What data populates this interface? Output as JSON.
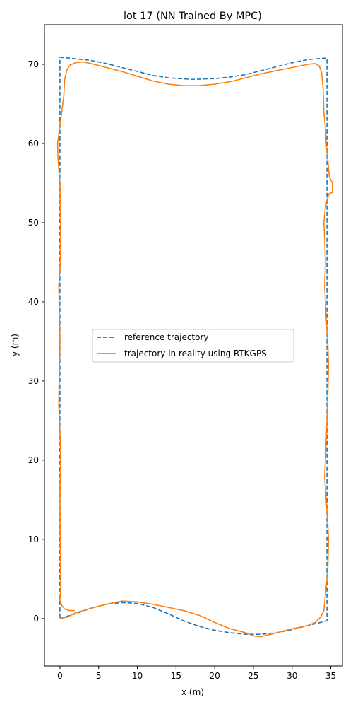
{
  "chart_data": {
    "type": "line",
    "title": "lot 17 (NN Trained By MPC)",
    "xlabel": "x (m)",
    "ylabel": "y (m)",
    "xlim": [
      -2,
      36.5
    ],
    "ylim": [
      -6,
      75
    ],
    "xticks": [
      0,
      5,
      10,
      15,
      20,
      25,
      30,
      35
    ],
    "yticks": [
      0,
      10,
      20,
      30,
      40,
      50,
      60,
      70
    ],
    "grid": false,
    "legend_position": "center",
    "series": [
      {
        "name": "reference trajectory",
        "style": "dashed",
        "color": "#1f77b4",
        "points": [
          [
            0,
            0
          ],
          [
            2,
            0.6
          ],
          [
            4,
            1.3
          ],
          [
            6,
            1.8
          ],
          [
            8,
            2.0
          ],
          [
            10,
            1.9
          ],
          [
            12,
            1.4
          ],
          [
            14,
            0.6
          ],
          [
            16,
            -0.3
          ],
          [
            18,
            -1.0
          ],
          [
            20,
            -1.5
          ],
          [
            22,
            -1.8
          ],
          [
            24,
            -2.0
          ],
          [
            26,
            -2.0
          ],
          [
            28,
            -1.8
          ],
          [
            30,
            -1.4
          ],
          [
            32,
            -0.9
          ],
          [
            34.5,
            -0.3
          ],
          [
            34.5,
            10
          ],
          [
            34.5,
            20
          ],
          [
            34.5,
            30
          ],
          [
            34.5,
            40
          ],
          [
            34.5,
            50
          ],
          [
            34.5,
            60
          ],
          [
            34.5,
            70.8
          ],
          [
            32,
            70.6
          ],
          [
            30,
            70.2
          ],
          [
            28,
            69.7
          ],
          [
            26,
            69.2
          ],
          [
            24,
            68.7
          ],
          [
            22,
            68.4
          ],
          [
            20,
            68.2
          ],
          [
            17,
            68.1
          ],
          [
            14,
            68.3
          ],
          [
            12,
            68.6
          ],
          [
            10,
            69.1
          ],
          [
            8,
            69.6
          ],
          [
            6,
            70.1
          ],
          [
            4,
            70.5
          ],
          [
            2,
            70.7
          ],
          [
            0,
            70.9
          ],
          [
            0,
            60
          ],
          [
            0,
            50
          ],
          [
            0,
            40
          ],
          [
            0,
            30
          ],
          [
            0,
            20
          ],
          [
            0,
            10
          ],
          [
            0,
            0
          ]
        ]
      },
      {
        "name": "trajectory in reality using RTKGPS",
        "style": "solid",
        "color": "#ff7f0e",
        "points": [
          [
            1.9,
            1.0
          ],
          [
            1.2,
            1.0
          ],
          [
            0.6,
            1.2
          ],
          [
            0.2,
            1.7
          ],
          [
            0,
            2.4
          ],
          [
            0.1,
            3.5
          ],
          [
            0.1,
            5
          ],
          [
            0.05,
            10
          ],
          [
            0.0,
            15
          ],
          [
            0.1,
            20
          ],
          [
            0.05,
            22
          ],
          [
            -0.15,
            27
          ],
          [
            -0.1,
            30
          ],
          [
            0.0,
            35
          ],
          [
            -0.1,
            40
          ],
          [
            -0.15,
            42
          ],
          [
            0.05,
            45
          ],
          [
            0.1,
            50
          ],
          [
            0.05,
            52
          ],
          [
            0.0,
            55
          ],
          [
            -0.25,
            58
          ],
          [
            -0.3,
            60
          ],
          [
            0.1,
            63
          ],
          [
            0.5,
            66
          ],
          [
            0.6,
            68
          ],
          [
            0.9,
            69.3
          ],
          [
            1.3,
            69.9
          ],
          [
            2,
            70.2
          ],
          [
            3,
            70.3
          ],
          [
            4,
            70.1
          ],
          [
            6,
            69.6
          ],
          [
            8,
            69.1
          ],
          [
            10,
            68.5
          ],
          [
            12,
            67.9
          ],
          [
            14,
            67.5
          ],
          [
            16,
            67.3
          ],
          [
            18,
            67.3
          ],
          [
            20,
            67.5
          ],
          [
            22,
            67.8
          ],
          [
            24,
            68.3
          ],
          [
            26,
            68.8
          ],
          [
            28,
            69.2
          ],
          [
            30,
            69.6
          ],
          [
            32,
            70.0
          ],
          [
            33,
            70.1
          ],
          [
            33.5,
            69.8
          ],
          [
            33.8,
            69
          ],
          [
            34.0,
            67
          ],
          [
            34.1,
            64
          ],
          [
            34.3,
            62
          ],
          [
            34.4,
            60
          ],
          [
            34.6,
            58
          ],
          [
            34.8,
            55.8
          ],
          [
            35.2,
            55.0
          ],
          [
            35.2,
            53.8
          ],
          [
            34.8,
            53.7
          ],
          [
            34.6,
            53.2
          ],
          [
            34.3,
            52
          ],
          [
            34.1,
            50
          ],
          [
            34.2,
            48
          ],
          [
            34.3,
            45
          ],
          [
            34.2,
            42
          ],
          [
            34.4,
            38
          ],
          [
            34.6,
            35
          ],
          [
            34.7,
            32
          ],
          [
            34.6,
            28
          ],
          [
            34.5,
            25
          ],
          [
            34.3,
            20
          ],
          [
            34.2,
            18
          ],
          [
            34.4,
            15
          ],
          [
            34.6,
            12
          ],
          [
            34.7,
            10
          ],
          [
            34.6,
            6
          ],
          [
            34.3,
            3
          ],
          [
            34.1,
            1.0
          ],
          [
            33.7,
            0.2
          ],
          [
            33,
            -0.5
          ],
          [
            32,
            -0.9
          ],
          [
            30,
            -1.3
          ],
          [
            28,
            -1.8
          ],
          [
            26,
            -2.3
          ],
          [
            25,
            -2.2
          ],
          [
            24,
            -1.8
          ],
          [
            22,
            -1.3
          ],
          [
            20,
            -0.5
          ],
          [
            18,
            0.4
          ],
          [
            16,
            1.0
          ],
          [
            14,
            1.4
          ],
          [
            12,
            1.8
          ],
          [
            10,
            2.1
          ],
          [
            8,
            2.2
          ],
          [
            6,
            1.8
          ],
          [
            4,
            1.3
          ],
          [
            2,
            0.7
          ],
          [
            1,
            0.2
          ],
          [
            0,
            0
          ]
        ]
      }
    ]
  }
}
